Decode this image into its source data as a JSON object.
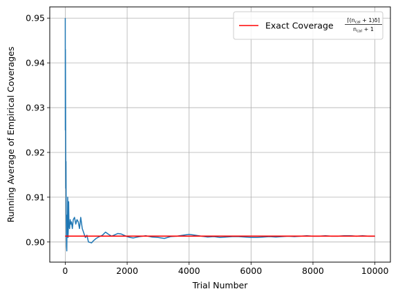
{
  "chart_data": {
    "type": "line",
    "title": "",
    "xlabel": "Trial Number",
    "ylabel": "Running Average of Empirical Coverages",
    "xlim": [
      -500,
      10500
    ],
    "ylim": [
      0.8955,
      0.9525
    ],
    "xticks": [
      0,
      2000,
      4000,
      6000,
      8000,
      10000
    ],
    "xtick_labels": [
      "0",
      "2000",
      "4000",
      "6000",
      "8000",
      "10000"
    ],
    "yticks": [
      0.9,
      0.91,
      0.92,
      0.93,
      0.94,
      0.95
    ],
    "ytick_labels": [
      "0.90",
      "0.91",
      "0.92",
      "0.93",
      "0.94",
      "0.95"
    ],
    "grid": true,
    "legend_placement": "top-right",
    "series": [
      {
        "name": "",
        "color": "#1f77b4",
        "x": [
          1,
          3,
          6,
          10,
          15,
          20,
          25,
          30,
          40,
          50,
          60,
          70,
          80,
          90,
          100,
          110,
          120,
          140,
          160,
          180,
          200,
          230,
          260,
          300,
          340,
          380,
          420,
          460,
          500,
          550,
          600,
          650,
          700,
          750,
          800,
          850,
          900,
          1000,
          1100,
          1200,
          1300,
          1400,
          1500,
          1600,
          1700,
          1800,
          1900,
          2000,
          2100,
          2200,
          2400,
          2600,
          2800,
          3000,
          3200,
          3400,
          3600,
          3800,
          4000,
          4200,
          4400,
          4600,
          4800,
          5000,
          5200,
          5400,
          5600,
          5800,
          6000,
          6200,
          6400,
          6600,
          6800,
          7000,
          7200,
          7400,
          7600,
          7800,
          8000,
          8200,
          8400,
          8600,
          8800,
          9000,
          9200,
          9400,
          9600,
          9800,
          10000
        ],
        "values": [
          0.95,
          0.925,
          0.943,
          0.933,
          0.921,
          0.912,
          0.918,
          0.907,
          0.899,
          0.898,
          0.906,
          0.902,
          0.91,
          0.901,
          0.903,
          0.909,
          0.904,
          0.903,
          0.905,
          0.904,
          0.9045,
          0.903,
          0.905,
          0.9055,
          0.904,
          0.905,
          0.9045,
          0.903,
          0.9055,
          0.903,
          0.902,
          0.901,
          0.9015,
          0.9,
          0.8999,
          0.8998,
          0.9002,
          0.9008,
          0.9012,
          0.9015,
          0.9022,
          0.9017,
          0.9013,
          0.9016,
          0.9019,
          0.9018,
          0.9015,
          0.9012,
          0.901,
          0.9009,
          0.9012,
          0.9014,
          0.9011,
          0.901,
          0.9008,
          0.9012,
          0.9013,
          0.9015,
          0.9017,
          0.9015,
          0.9013,
          0.9011,
          0.9012,
          0.901,
          0.9011,
          0.9012,
          0.9012,
          0.9011,
          0.901,
          0.901,
          0.9011,
          0.9012,
          0.9011,
          0.9012,
          0.9013,
          0.9012,
          0.9013,
          0.9014,
          0.9013,
          0.9013,
          0.9014,
          0.9013,
          0.9013,
          0.9014,
          0.9014,
          0.9013,
          0.9014,
          0.9013,
          0.9013
        ]
      },
      {
        "name": "Exact Coverage",
        "color": "#ff0000",
        "x": [
          0,
          10000
        ],
        "values": [
          0.9013,
          0.9013
        ]
      }
    ],
    "legend": {
      "label_text": "Exact Coverage",
      "formula_numerator": "⌈(n",
      "formula_numerator_sub": "cal",
      "formula_numerator_end": " + 1)δ⌉",
      "formula_denominator": "n",
      "formula_denominator_sub": "cal",
      "formula_denominator_end": " + 1"
    }
  }
}
